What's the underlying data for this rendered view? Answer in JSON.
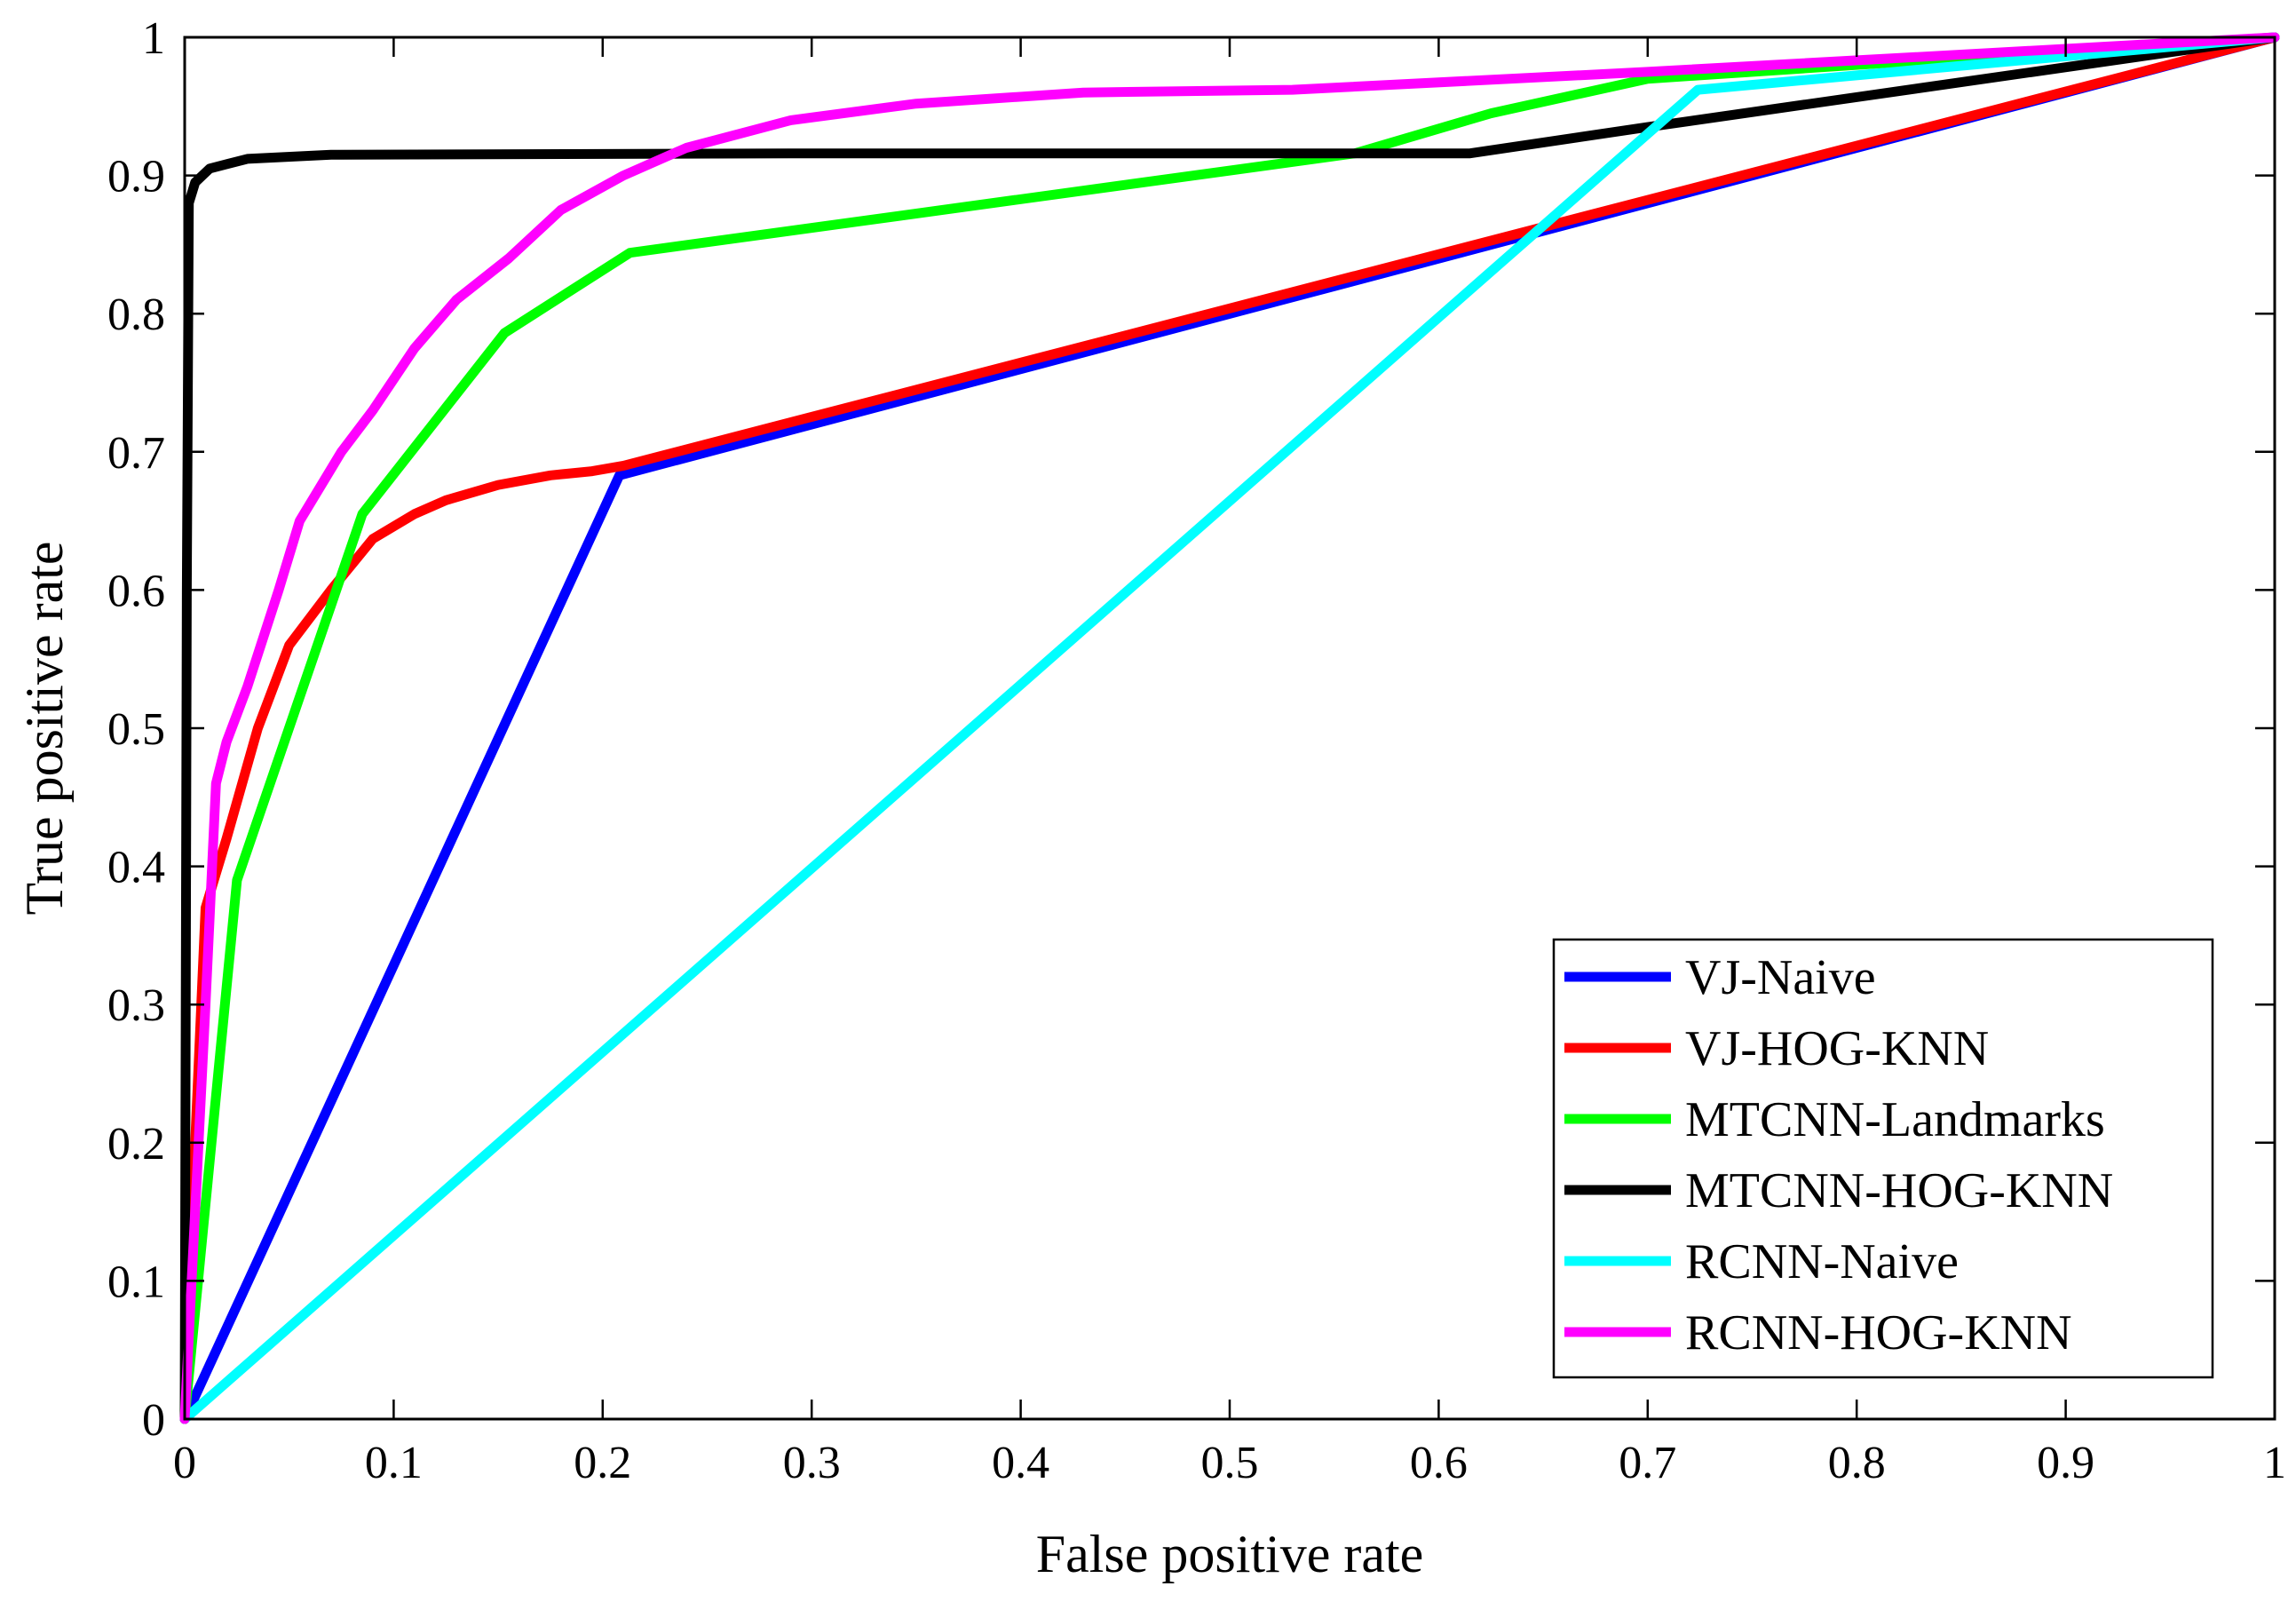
{
  "chart_data": {
    "type": "line",
    "title": "",
    "xlabel": "False positive rate",
    "ylabel": "True positive rate",
    "xlim": [
      0,
      1
    ],
    "ylim": [
      0,
      1
    ],
    "xticks": [
      0,
      0.1,
      0.2,
      0.3,
      0.4,
      0.5,
      0.6,
      0.7,
      0.8,
      0.9,
      1
    ],
    "yticks": [
      0,
      0.1,
      0.2,
      0.3,
      0.4,
      0.5,
      0.6,
      0.7,
      0.8,
      0.9,
      1
    ],
    "xtick_labels": [
      "0",
      "0.1",
      "0.2",
      "0.3",
      "0.4",
      "0.5",
      "0.6",
      "0.7",
      "0.8",
      "0.9",
      "1"
    ],
    "ytick_labels": [
      "0",
      "0.1",
      "0.2",
      "0.3",
      "0.4",
      "0.5",
      "0.6",
      "0.7",
      "0.8",
      "0.9",
      "1"
    ],
    "grid": false,
    "legend_position": "bottom-right",
    "series": [
      {
        "name": "VJ-Naive",
        "color": "#0000ff",
        "points": [
          [
            0,
            0
          ],
          [
            0.208,
            0.683
          ],
          [
            1,
            1
          ]
        ]
      },
      {
        "name": "VJ-HOG-KNN",
        "color": "#ff0000",
        "points": [
          [
            0,
            0
          ],
          [
            0.005,
            0.2
          ],
          [
            0.01,
            0.37
          ],
          [
            0.02,
            0.42
          ],
          [
            0.035,
            0.5
          ],
          [
            0.05,
            0.56
          ],
          [
            0.07,
            0.6
          ],
          [
            0.09,
            0.637
          ],
          [
            0.11,
            0.655
          ],
          [
            0.125,
            0.665
          ],
          [
            0.15,
            0.676
          ],
          [
            0.175,
            0.683
          ],
          [
            0.195,
            0.686
          ],
          [
            0.21,
            0.69
          ],
          [
            1,
            1
          ]
        ]
      },
      {
        "name": "MTCNN-Landmarks",
        "color": "#00ff00",
        "points": [
          [
            0,
            0
          ],
          [
            0.025,
            0.39
          ],
          [
            0.085,
            0.655
          ],
          [
            0.153,
            0.786
          ],
          [
            0.213,
            0.844
          ],
          [
            0.56,
            0.916
          ],
          [
            0.625,
            0.945
          ],
          [
            0.7,
            0.97
          ],
          [
            1,
            1
          ]
        ]
      },
      {
        "name": "MTCNN-HOG-KNN",
        "color": "#000000",
        "points": [
          [
            0,
            0
          ],
          [
            0.001,
            0.6
          ],
          [
            0.002,
            0.88
          ],
          [
            0.005,
            0.895
          ],
          [
            0.012,
            0.905
          ],
          [
            0.03,
            0.912
          ],
          [
            0.07,
            0.915
          ],
          [
            0.3,
            0.916
          ],
          [
            0.615,
            0.916
          ],
          [
            0.7,
            0.935
          ],
          [
            1,
            1
          ]
        ]
      },
      {
        "name": "RCNN-Naive",
        "color": "#00ffff",
        "points": [
          [
            0,
            0
          ],
          [
            0.724,
            0.962
          ],
          [
            1,
            1
          ]
        ]
      },
      {
        "name": "RCNN-HOG-KNN",
        "color": "#ff00ff",
        "points": [
          [
            0,
            0
          ],
          [
            0.01,
            0.3
          ],
          [
            0.015,
            0.46
          ],
          [
            0.02,
            0.49
          ],
          [
            0.03,
            0.53
          ],
          [
            0.045,
            0.6
          ],
          [
            0.055,
            0.65
          ],
          [
            0.075,
            0.7
          ],
          [
            0.09,
            0.73
          ],
          [
            0.11,
            0.775
          ],
          [
            0.13,
            0.81
          ],
          [
            0.155,
            0.84
          ],
          [
            0.18,
            0.875
          ],
          [
            0.21,
            0.9
          ],
          [
            0.24,
            0.92
          ],
          [
            0.29,
            0.94
          ],
          [
            0.35,
            0.952
          ],
          [
            0.43,
            0.96
          ],
          [
            0.53,
            0.962
          ],
          [
            0.7,
            0.975
          ],
          [
            1,
            1
          ]
        ]
      }
    ]
  }
}
